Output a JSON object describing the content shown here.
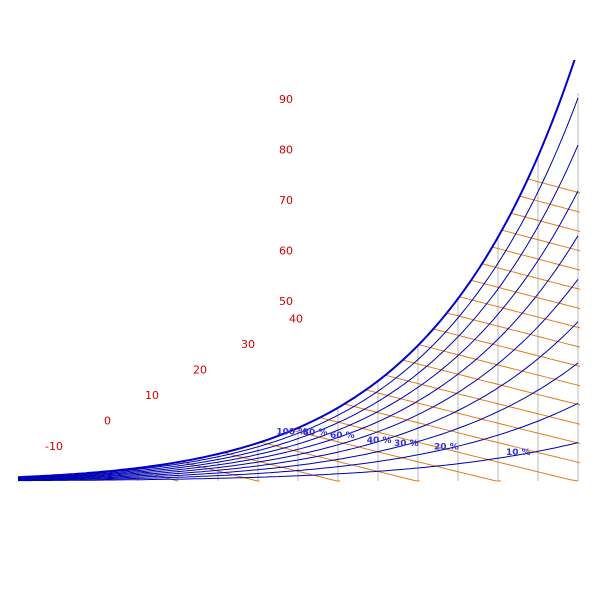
{
  "chart_data": {
    "type": "line",
    "title": "",
    "xlabel": "",
    "ylabel": "",
    "colors": {
      "enthalpy_lines": "#e07a1a",
      "temperature_verticals": "#b8b8b8",
      "humidity_curves": "#0000b4",
      "saturation_curve": "#0000cc",
      "tick_labels": "#d40000",
      "curve_labels": "#3333dd"
    },
    "xlim": [
      -20,
      50
    ],
    "ylim": [
      0,
      0.085
    ],
    "temperature_verticals": [
      -10,
      -5,
      0,
      5,
      10,
      15,
      20,
      25,
      30,
      35,
      40,
      45,
      50
    ],
    "enthalpy_ticks": [
      {
        "label": "-10",
        "value": -10
      },
      {
        "label": "0",
        "value": 0
      },
      {
        "label": "10",
        "value": 10
      },
      {
        "label": "20",
        "value": 20
      },
      {
        "label": "30",
        "value": 30
      },
      {
        "label": "40",
        "value": 40
      },
      {
        "label": "50",
        "value": 50
      },
      {
        "label": "60",
        "value": 60
      },
      {
        "label": "70",
        "value": 70
      },
      {
        "label": "80",
        "value": 80
      },
      {
        "label": "90",
        "value": 90
      }
    ],
    "enthalpy_lines": [
      0,
      10,
      20,
      30,
      40,
      50,
      60,
      70,
      80,
      90,
      100,
      110,
      120,
      130,
      140,
      150,
      160,
      170,
      180,
      190,
      200
    ],
    "series": [
      {
        "rh": 1.0,
        "name": "100 %"
      },
      {
        "rh": 0.9,
        "name": ""
      },
      {
        "rh": 0.8,
        "name": "80 %"
      },
      {
        "rh": 0.7,
        "name": ""
      },
      {
        "rh": 0.6,
        "name": "60 %"
      },
      {
        "rh": 0.5,
        "name": ""
      },
      {
        "rh": 0.4,
        "name": "40 %"
      },
      {
        "rh": 0.3,
        "name": "30 %"
      },
      {
        "rh": 0.2,
        "name": "20 %"
      },
      {
        "rh": 0.1,
        "name": "10 %"
      }
    ],
    "grid": true,
    "legend": "none"
  }
}
